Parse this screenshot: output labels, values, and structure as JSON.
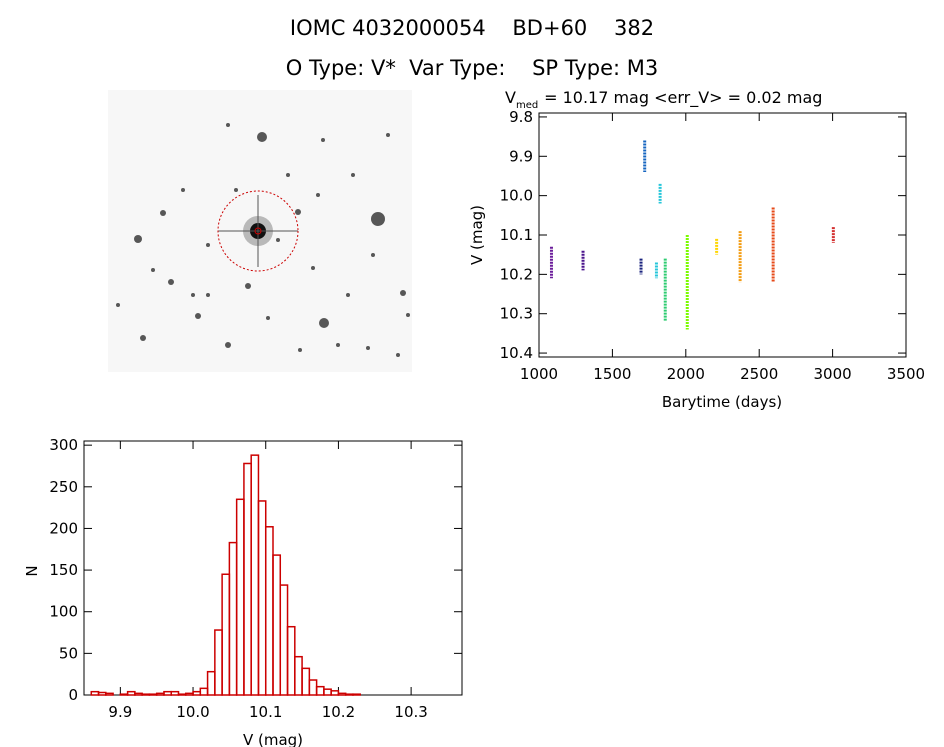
{
  "header": {
    "line1": "IOMC 4032000054    BD+60    382",
    "line2": "O Type: V*  Var Type:    SP Type: M3"
  },
  "image_panel": {
    "description_icon": "star-field-thumbnail",
    "circle_color": "#cc0000"
  },
  "chart_data": [
    {
      "type": "scatter",
      "title_main": "V",
      "title_sub": "med",
      "title_rest": " = 10.17 mag <err_V> = 0.02 mag",
      "xlabel": "Barytime (days)",
      "ylabel": "V (mag)",
      "xlim": [
        1000,
        3500
      ],
      "ylim": [
        10.41,
        9.79
      ],
      "xticks": [
        1000,
        1500,
        2000,
        2500,
        3000,
        3500
      ],
      "yticks": [
        9.8,
        9.9,
        10.0,
        10.1,
        10.2,
        10.3,
        10.4
      ],
      "ytick_labels": [
        "9.8",
        "9.9",
        "10.0",
        "10.1",
        "10.2",
        "10.3",
        "10.4"
      ],
      "groups": [
        {
          "x": 1085,
          "y_min": 10.13,
          "y_max": 10.21,
          "color": "#6a1b9a"
        },
        {
          "x": 1300,
          "y_min": 10.14,
          "y_max": 10.19,
          "color": "#4a148c"
        },
        {
          "x": 1695,
          "y_min": 10.16,
          "y_max": 10.2,
          "color": "#1a237e"
        },
        {
          "x": 1720,
          "y_min": 9.86,
          "y_max": 9.94,
          "color": "#1565c0"
        },
        {
          "x": 1800,
          "y_min": 10.17,
          "y_max": 10.21,
          "color": "#26c6da"
        },
        {
          "x": 1825,
          "y_min": 9.97,
          "y_max": 10.02,
          "color": "#26c6da"
        },
        {
          "x": 1860,
          "y_min": 10.16,
          "y_max": 10.32,
          "color": "#2ecc71"
        },
        {
          "x": 2010,
          "y_min": 10.1,
          "y_max": 10.34,
          "color": "#7cfc00"
        },
        {
          "x": 2210,
          "y_min": 10.11,
          "y_max": 10.15,
          "color": "#ffd600"
        },
        {
          "x": 2370,
          "y_min": 10.09,
          "y_max": 10.22,
          "color": "#f39c12"
        },
        {
          "x": 2595,
          "y_min": 10.03,
          "y_max": 10.22,
          "color": "#e64a19"
        },
        {
          "x": 3005,
          "y_min": 10.08,
          "y_max": 10.12,
          "color": "#d32f2f"
        }
      ]
    },
    {
      "type": "bar",
      "style": "histogram-step",
      "xlabel": "V (mag)",
      "ylabel": "N",
      "xlim": [
        9.85,
        10.37
      ],
      "ylim": [
        0,
        305
      ],
      "xticks": [
        9.9,
        10.0,
        10.1,
        10.2,
        10.3
      ],
      "xtick_labels": [
        "9.9",
        "10.0",
        "10.1",
        "10.2",
        "10.3"
      ],
      "yticks": [
        0,
        50,
        100,
        150,
        200,
        250,
        300
      ],
      "bin_start": 9.86,
      "bin_width": 0.01,
      "values": [
        4,
        3,
        2,
        0,
        1,
        4,
        2,
        1,
        1,
        2,
        4,
        4,
        1,
        2,
        4,
        8,
        28,
        78,
        145,
        183,
        235,
        278,
        288,
        233,
        202,
        168,
        132,
        82,
        46,
        32,
        18,
        10,
        7,
        5,
        2,
        1,
        1
      ],
      "color": "#cc0000"
    }
  ]
}
